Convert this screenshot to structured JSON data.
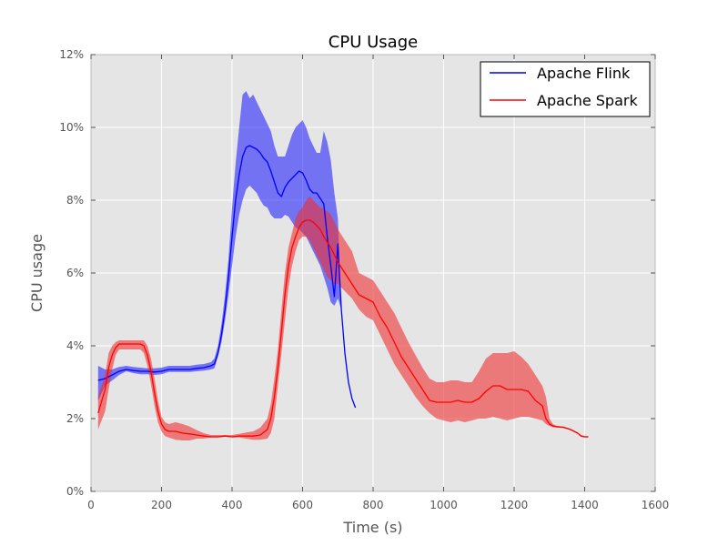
{
  "chart_data": {
    "type": "line",
    "title": "CPU Usage",
    "xlabel": "Time (s)",
    "ylabel": "CPU usage",
    "xlim": [
      0,
      1600
    ],
    "ylim": [
      0,
      12
    ],
    "x_ticks": [
      0,
      200,
      400,
      600,
      800,
      1000,
      1200,
      1400,
      1600
    ],
    "y_ticks": [
      0,
      2,
      4,
      6,
      8,
      10,
      12
    ],
    "y_tick_suffix": "%",
    "grid": true,
    "legend_position": "top-right",
    "series": [
      {
        "name": "Apache Flink",
        "color": "#0000ff",
        "band_color": "#0000ff",
        "band_opacity": 0.5,
        "x": [
          20,
          40,
          60,
          80,
          100,
          120,
          140,
          160,
          180,
          200,
          220,
          240,
          260,
          280,
          300,
          320,
          340,
          350,
          360,
          370,
          380,
          390,
          400,
          410,
          420,
          430,
          440,
          450,
          460,
          470,
          480,
          490,
          500,
          510,
          520,
          530,
          540,
          550,
          560,
          570,
          580,
          590,
          600,
          610,
          620,
          630,
          640,
          650,
          660,
          670,
          680,
          690,
          700,
          710,
          720,
          730,
          740,
          750
        ],
        "y": [
          3.05,
          3.1,
          3.2,
          3.3,
          3.35,
          3.32,
          3.3,
          3.3,
          3.28,
          3.3,
          3.35,
          3.35,
          3.35,
          3.35,
          3.38,
          3.4,
          3.45,
          3.5,
          3.8,
          4.3,
          5.0,
          5.9,
          7.0,
          8.0,
          8.7,
          9.2,
          9.45,
          9.5,
          9.45,
          9.4,
          9.3,
          9.15,
          9.05,
          8.8,
          8.5,
          8.2,
          8.1,
          8.35,
          8.5,
          8.6,
          8.7,
          8.8,
          8.75,
          8.55,
          8.3,
          8.2,
          8.2,
          8.05,
          7.9,
          7.0,
          6.2,
          5.35,
          6.8,
          5.0,
          3.8,
          3.0,
          2.55,
          2.3
        ],
        "y_low": [
          2.5,
          2.9,
          3.05,
          3.2,
          3.3,
          3.25,
          3.22,
          3.22,
          3.2,
          3.22,
          3.28,
          3.28,
          3.28,
          3.28,
          3.3,
          3.32,
          3.35,
          3.38,
          3.7,
          4.1,
          4.7,
          5.4,
          6.2,
          7.0,
          7.6,
          8.0,
          8.3,
          8.4,
          8.3,
          8.2,
          8.0,
          7.85,
          7.8,
          7.6,
          7.5,
          7.5,
          7.5,
          7.6,
          7.55,
          7.4,
          7.25,
          7.2,
          7.1,
          7.0,
          6.8,
          6.6,
          6.4,
          6.2,
          5.9,
          5.6,
          5.2,
          5.1,
          5.3,
          5.0,
          3.8,
          3.0,
          2.55,
          2.3
        ],
        "y_high": [
          3.45,
          3.35,
          3.35,
          3.42,
          3.45,
          3.42,
          3.4,
          3.38,
          3.38,
          3.4,
          3.45,
          3.45,
          3.45,
          3.45,
          3.48,
          3.5,
          3.55,
          3.65,
          4.0,
          4.6,
          5.4,
          6.4,
          7.8,
          9.0,
          10.0,
          10.9,
          11.0,
          10.8,
          10.9,
          10.7,
          10.5,
          10.3,
          10.1,
          9.9,
          9.5,
          9.2,
          9.2,
          9.2,
          9.5,
          9.8,
          10.0,
          10.1,
          10.2,
          10.0,
          9.7,
          9.5,
          9.3,
          9.3,
          9.9,
          9.6,
          9.1,
          8.2,
          7.5,
          5.0,
          3.8,
          3.0,
          2.55,
          2.3
        ]
      },
      {
        "name": "Apache Spark",
        "color": "#ff0000",
        "band_color": "#f03030",
        "band_opacity": 0.6,
        "x": [
          20,
          40,
          50,
          60,
          70,
          80,
          100,
          120,
          140,
          150,
          160,
          170,
          180,
          190,
          200,
          210,
          220,
          240,
          260,
          280,
          300,
          320,
          340,
          360,
          380,
          400,
          420,
          440,
          460,
          480,
          500,
          510,
          520,
          530,
          540,
          550,
          560,
          570,
          580,
          590,
          600,
          610,
          620,
          630,
          640,
          650,
          660,
          670,
          680,
          690,
          700,
          720,
          740,
          760,
          780,
          800,
          820,
          840,
          860,
          880,
          900,
          920,
          940,
          960,
          980,
          1000,
          1020,
          1040,
          1060,
          1080,
          1100,
          1120,
          1140,
          1160,
          1180,
          1200,
          1220,
          1240,
          1260,
          1280,
          1290,
          1300,
          1310,
          1320,
          1340,
          1360,
          1370,
          1380,
          1390,
          1400,
          1410
        ],
        "y": [
          2.15,
          2.8,
          3.4,
          3.75,
          3.95,
          4.05,
          4.05,
          4.05,
          4.05,
          4.0,
          3.75,
          3.3,
          2.7,
          2.2,
          1.85,
          1.7,
          1.65,
          1.65,
          1.6,
          1.58,
          1.55,
          1.52,
          1.5,
          1.5,
          1.52,
          1.5,
          1.52,
          1.52,
          1.52,
          1.55,
          1.7,
          2.0,
          2.6,
          3.4,
          4.4,
          5.4,
          6.2,
          6.7,
          7.0,
          7.25,
          7.4,
          7.45,
          7.45,
          7.4,
          7.3,
          7.2,
          7.0,
          6.85,
          6.7,
          6.5,
          6.3,
          6.0,
          5.7,
          5.4,
          5.3,
          5.2,
          4.8,
          4.5,
          4.1,
          3.7,
          3.4,
          3.1,
          2.8,
          2.5,
          2.45,
          2.45,
          2.45,
          2.5,
          2.45,
          2.45,
          2.55,
          2.75,
          2.9,
          2.9,
          2.8,
          2.8,
          2.8,
          2.75,
          2.5,
          2.35,
          2.0,
          1.85,
          1.8,
          1.78,
          1.76,
          1.7,
          1.65,
          1.6,
          1.52,
          1.5,
          1.5
        ],
        "y_low": [
          1.7,
          2.2,
          2.8,
          3.35,
          3.75,
          3.9,
          3.9,
          3.9,
          3.9,
          3.8,
          3.45,
          2.95,
          2.35,
          1.9,
          1.65,
          1.52,
          1.48,
          1.42,
          1.4,
          1.4,
          1.45,
          1.45,
          1.48,
          1.48,
          1.5,
          1.48,
          1.48,
          1.45,
          1.42,
          1.42,
          1.45,
          1.6,
          2.0,
          2.9,
          3.8,
          4.7,
          5.6,
          6.2,
          6.6,
          6.9,
          7.0,
          7.0,
          6.9,
          6.7,
          6.5,
          6.3,
          6.1,
          5.9,
          5.8,
          5.7,
          5.7,
          5.5,
          5.3,
          5.0,
          4.8,
          4.7,
          4.3,
          3.9,
          3.5,
          3.2,
          2.9,
          2.6,
          2.35,
          2.15,
          2.0,
          1.95,
          1.9,
          1.95,
          1.9,
          1.95,
          2.0,
          2.0,
          2.05,
          2.0,
          1.95,
          2.0,
          2.05,
          2.05,
          2.0,
          1.95,
          1.85,
          1.8,
          1.76,
          1.75,
          1.74,
          1.68,
          1.63,
          1.58,
          1.5,
          1.48,
          1.48
        ],
        "y_high": [
          2.6,
          3.2,
          3.8,
          4.0,
          4.1,
          4.15,
          4.15,
          4.15,
          4.15,
          4.15,
          4.0,
          3.65,
          3.1,
          2.5,
          2.05,
          1.9,
          1.85,
          1.9,
          1.85,
          1.78,
          1.68,
          1.6,
          1.55,
          1.55,
          1.55,
          1.55,
          1.58,
          1.62,
          1.65,
          1.75,
          2.0,
          2.4,
          3.1,
          3.9,
          5.0,
          6.0,
          6.7,
          7.1,
          7.5,
          7.7,
          7.8,
          8.0,
          8.1,
          8.0,
          7.9,
          7.8,
          7.75,
          7.7,
          7.6,
          7.4,
          7.2,
          6.9,
          6.6,
          6.0,
          5.9,
          5.8,
          5.5,
          5.2,
          4.9,
          4.5,
          4.1,
          3.75,
          3.4,
          3.1,
          3.0,
          3.0,
          3.05,
          3.05,
          3.0,
          3.0,
          3.3,
          3.65,
          3.8,
          3.8,
          3.8,
          3.85,
          3.7,
          3.5,
          3.2,
          2.9,
          2.6,
          2.0,
          1.85,
          1.8,
          1.78,
          1.72,
          1.67,
          1.62,
          1.55,
          1.52,
          1.52
        ]
      }
    ]
  }
}
